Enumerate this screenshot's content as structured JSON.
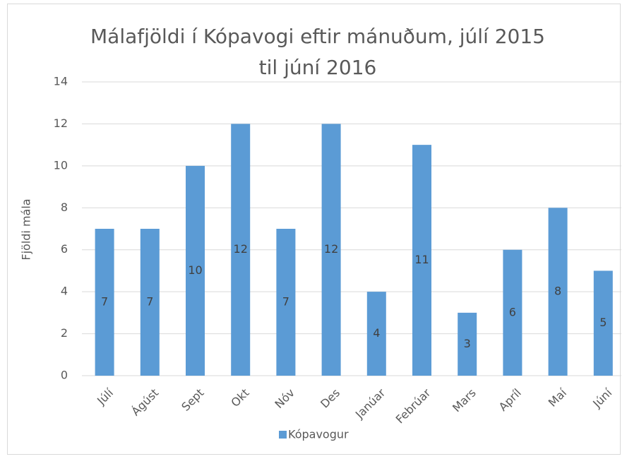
{
  "chart_data": {
    "type": "bar",
    "title": "Málafjöldi í Kópavogi eftir mánuðum, júlí 2015 til júní 2016",
    "y_label": "Fjöldi mála",
    "categories": [
      "Júlí",
      "Ágúst",
      "Sept",
      "Okt",
      "Nóv",
      "Des",
      "Janúar",
      "Febrúar",
      "Mars",
      "Apríl",
      "Maí",
      "Júní"
    ],
    "series": [
      {
        "name": "Kópavogur",
        "color": "#5b9bd5",
        "values": [
          7,
          7,
          10,
          12,
          7,
          12,
          4,
          11,
          3,
          6,
          8,
          5
        ]
      }
    ],
    "ylim": [
      0,
      14
    ],
    "yticks": [
      0,
      2,
      4,
      6,
      8,
      10,
      12,
      14
    ],
    "grid": true,
    "legend": "bottom"
  }
}
